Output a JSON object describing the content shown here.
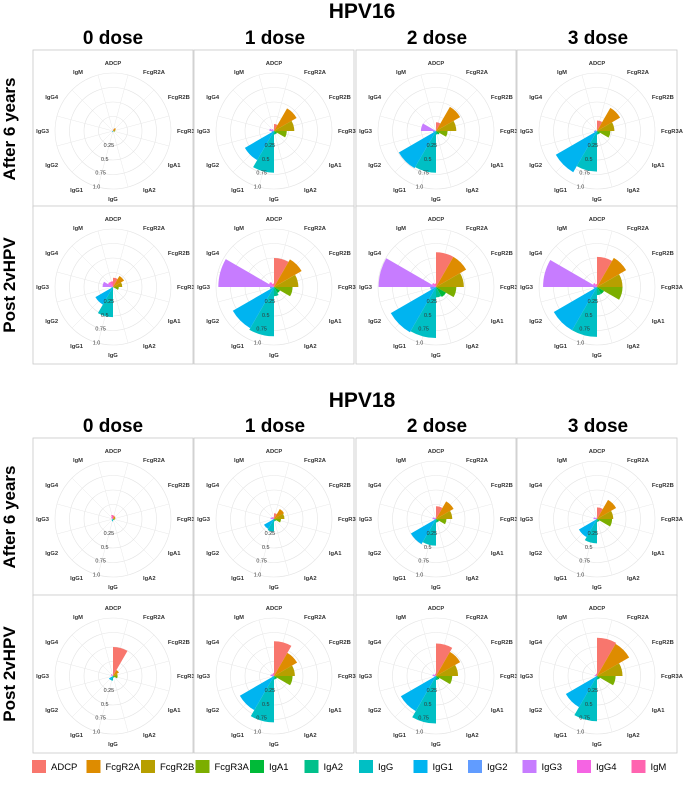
{
  "sections": [
    {
      "title": "HPV16"
    },
    {
      "title": "HPV18"
    }
  ],
  "columns": [
    "0 dose",
    "1 dose",
    "2 dose",
    "3 dose"
  ],
  "rows": [
    "After 6 years",
    "Post 2vHPV"
  ],
  "legend": {
    "labels": [
      "ADCP",
      "FcgR2A",
      "FcgR2B",
      "FcgR3A",
      "IgA1",
      "IgA2",
      "IgG",
      "IgG1",
      "IgG2",
      "IgG3",
      "IgG4",
      "IgM"
    ],
    "colors": [
      "#F8766D",
      "#DE8C00",
      "#B79F00",
      "#7CAE00",
      "#00BA38",
      "#00C08B",
      "#00BFC4",
      "#00B4F0",
      "#619CFF",
      "#C77CFF",
      "#F564E3",
      "#FF64B0"
    ]
  },
  "chart_data": {
    "type": "radial_bar",
    "title_note": "Polar bar (rose) charts per vaccine type, dose group and timepoint",
    "axis_labels": [
      "ADCP",
      "FcgR2A",
      "FcgR2B",
      "FcgR3A",
      "IgA1",
      "IgA2",
      "IgG",
      "IgG1",
      "IgG2",
      "IgG3",
      "IgG4",
      "IgM"
    ],
    "ring_labels": [
      "0.25",
      "0.5",
      "0.75",
      "1.0"
    ],
    "rmax": 1.0,
    "panels": [
      {
        "antigen": "HPV16",
        "dose": "0 dose",
        "timepoint": "After 6 years",
        "values": [
          0.03,
          0.06,
          0.04,
          0.03,
          0.0,
          0.0,
          0.02,
          0.02,
          0.0,
          0.0,
          0.0,
          0.0
        ]
      },
      {
        "antigen": "HPV16",
        "dose": "1 dose",
        "timepoint": "After 6 years",
        "values": [
          0.12,
          0.45,
          0.35,
          0.22,
          0.06,
          0.06,
          0.72,
          0.58,
          0.04,
          0.08,
          0.04,
          0.0
        ]
      },
      {
        "antigen": "HPV16",
        "dose": "2 dose",
        "timepoint": "After 6 years",
        "values": [
          0.15,
          0.48,
          0.35,
          0.2,
          0.07,
          0.06,
          0.72,
          0.74,
          0.05,
          0.26,
          0.0,
          0.0
        ]
      },
      {
        "antigen": "HPV16",
        "dose": "3 dose",
        "timepoint": "After 6 years",
        "values": [
          0.18,
          0.46,
          0.3,
          0.23,
          0.06,
          0.06,
          0.7,
          0.82,
          0.05,
          0.04,
          0.0,
          0.0
        ]
      },
      {
        "antigen": "HPV16",
        "dose": "0 dose",
        "timepoint": "Post 2vHPV",
        "values": [
          0.16,
          0.22,
          0.16,
          0.1,
          0.0,
          0.0,
          0.52,
          0.35,
          0.03,
          0.18,
          0.1,
          0.1
        ]
      },
      {
        "antigen": "HPV16",
        "dose": "1 dose",
        "timepoint": "Post 2vHPV",
        "values": [
          0.5,
          0.55,
          0.42,
          0.32,
          0.12,
          0.16,
          0.85,
          0.82,
          0.07,
          0.96,
          0.1,
          0.06
        ]
      },
      {
        "antigen": "HPV16",
        "dose": "2 dose",
        "timepoint": "Post 2vHPV",
        "values": [
          0.6,
          0.6,
          0.48,
          0.35,
          0.2,
          0.18,
          0.88,
          0.9,
          0.1,
          0.99,
          0.08,
          0.06
        ]
      },
      {
        "antigen": "HPV16",
        "dose": "3 dose",
        "timepoint": "Post 2vHPV",
        "values": [
          0.52,
          0.58,
          0.44,
          0.44,
          0.14,
          0.14,
          0.86,
          0.86,
          0.06,
          0.93,
          0.08,
          0.05
        ]
      },
      {
        "antigen": "HPV18",
        "dose": "0 dose",
        "timepoint": "After 6 years",
        "values": [
          0.06,
          0.05,
          0.04,
          0.03,
          0.02,
          0.02,
          0.04,
          0.03,
          0.0,
          0.02,
          0.04,
          0.07
        ]
      },
      {
        "antigen": "HPV18",
        "dose": "1 dose",
        "timepoint": "After 6 years",
        "values": [
          0.1,
          0.2,
          0.18,
          0.12,
          0.04,
          0.04,
          0.22,
          0.2,
          0.02,
          0.06,
          0.04,
          0.03
        ]
      },
      {
        "antigen": "HPV18",
        "dose": "2 dose",
        "timepoint": "After 6 years",
        "values": [
          0.22,
          0.35,
          0.28,
          0.18,
          0.06,
          0.06,
          0.46,
          0.5,
          0.03,
          0.06,
          0.03,
          0.02
        ]
      },
      {
        "antigen": "HPV18",
        "dose": "3 dose",
        "timepoint": "After 6 years",
        "values": [
          0.2,
          0.38,
          0.28,
          0.26,
          0.05,
          0.05,
          0.42,
          0.36,
          0.02,
          0.06,
          0.03,
          0.02
        ]
      },
      {
        "antigen": "HPV18",
        "dose": "0 dose",
        "timepoint": "Post 2vHPV",
        "values": [
          0.5,
          0.12,
          0.08,
          0.08,
          0.03,
          0.03,
          0.08,
          0.08,
          0.0,
          0.03,
          0.04,
          0.0
        ]
      },
      {
        "antigen": "HPV18",
        "dose": "1 dose",
        "timepoint": "Post 2vHPV",
        "values": [
          0.6,
          0.46,
          0.36,
          0.32,
          0.06,
          0.06,
          0.8,
          0.68,
          0.03,
          0.06,
          0.04,
          0.05
        ]
      },
      {
        "antigen": "HPV18",
        "dose": "2 dose",
        "timepoint": "Post 2vHPV",
        "values": [
          0.56,
          0.48,
          0.38,
          0.28,
          0.07,
          0.07,
          0.82,
          0.7,
          0.03,
          0.06,
          0.03,
          0.04
        ]
      },
      {
        "antigen": "HPV18",
        "dose": "3 dose",
        "timepoint": "Post 2vHPV",
        "values": [
          0.66,
          0.64,
          0.44,
          0.32,
          0.06,
          0.06,
          0.78,
          0.62,
          0.02,
          0.04,
          0.03,
          0.04
        ]
      }
    ]
  }
}
